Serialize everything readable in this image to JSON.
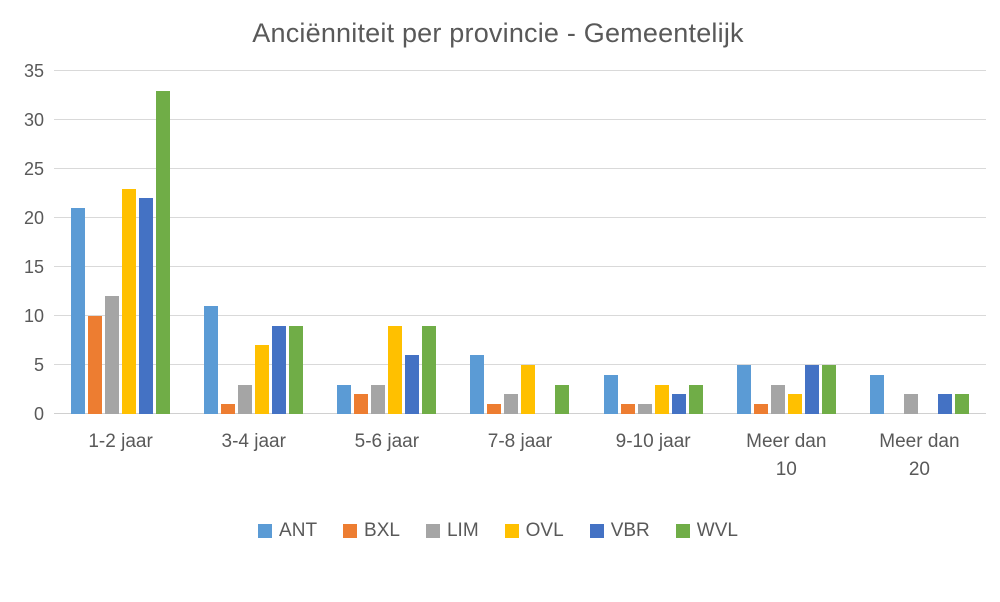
{
  "chart_data": {
    "type": "bar",
    "title": "Anciënniteit per provincie - Gemeentelijk",
    "categories": [
      "1-2 jaar",
      "3-4 jaar",
      "5-6 jaar",
      "7-8 jaar",
      "9-10 jaar",
      "Meer dan 10",
      "Meer dan 20"
    ],
    "series": [
      {
        "name": "ANT",
        "color": "#5B9BD5",
        "values": [
          21,
          11,
          3,
          6,
          4,
          5,
          4
        ]
      },
      {
        "name": "BXL",
        "color": "#ED7D31",
        "values": [
          10,
          1,
          2,
          1,
          1,
          1,
          0
        ]
      },
      {
        "name": "LIM",
        "color": "#A5A5A5",
        "values": [
          12,
          3,
          3,
          2,
          1,
          3,
          2
        ]
      },
      {
        "name": "OVL",
        "color": "#FFC000",
        "values": [
          23,
          7,
          9,
          5,
          3,
          2,
          0
        ]
      },
      {
        "name": "VBR",
        "color": "#4472C4",
        "values": [
          22,
          9,
          6,
          0,
          2,
          5,
          2
        ]
      },
      {
        "name": "WVL",
        "color": "#70AD47",
        "values": [
          33,
          9,
          9,
          3,
          3,
          5,
          2
        ]
      }
    ],
    "xlabel": "",
    "ylabel": "",
    "ylim": [
      0,
      35
    ],
    "yticks": [
      0,
      5,
      10,
      15,
      20,
      25,
      30,
      35
    ],
    "grid": true,
    "legend_position": "bottom"
  },
  "colors": {
    "background": "#FFFFFF",
    "text": "#595959",
    "gridline": "#D9D9D9"
  }
}
